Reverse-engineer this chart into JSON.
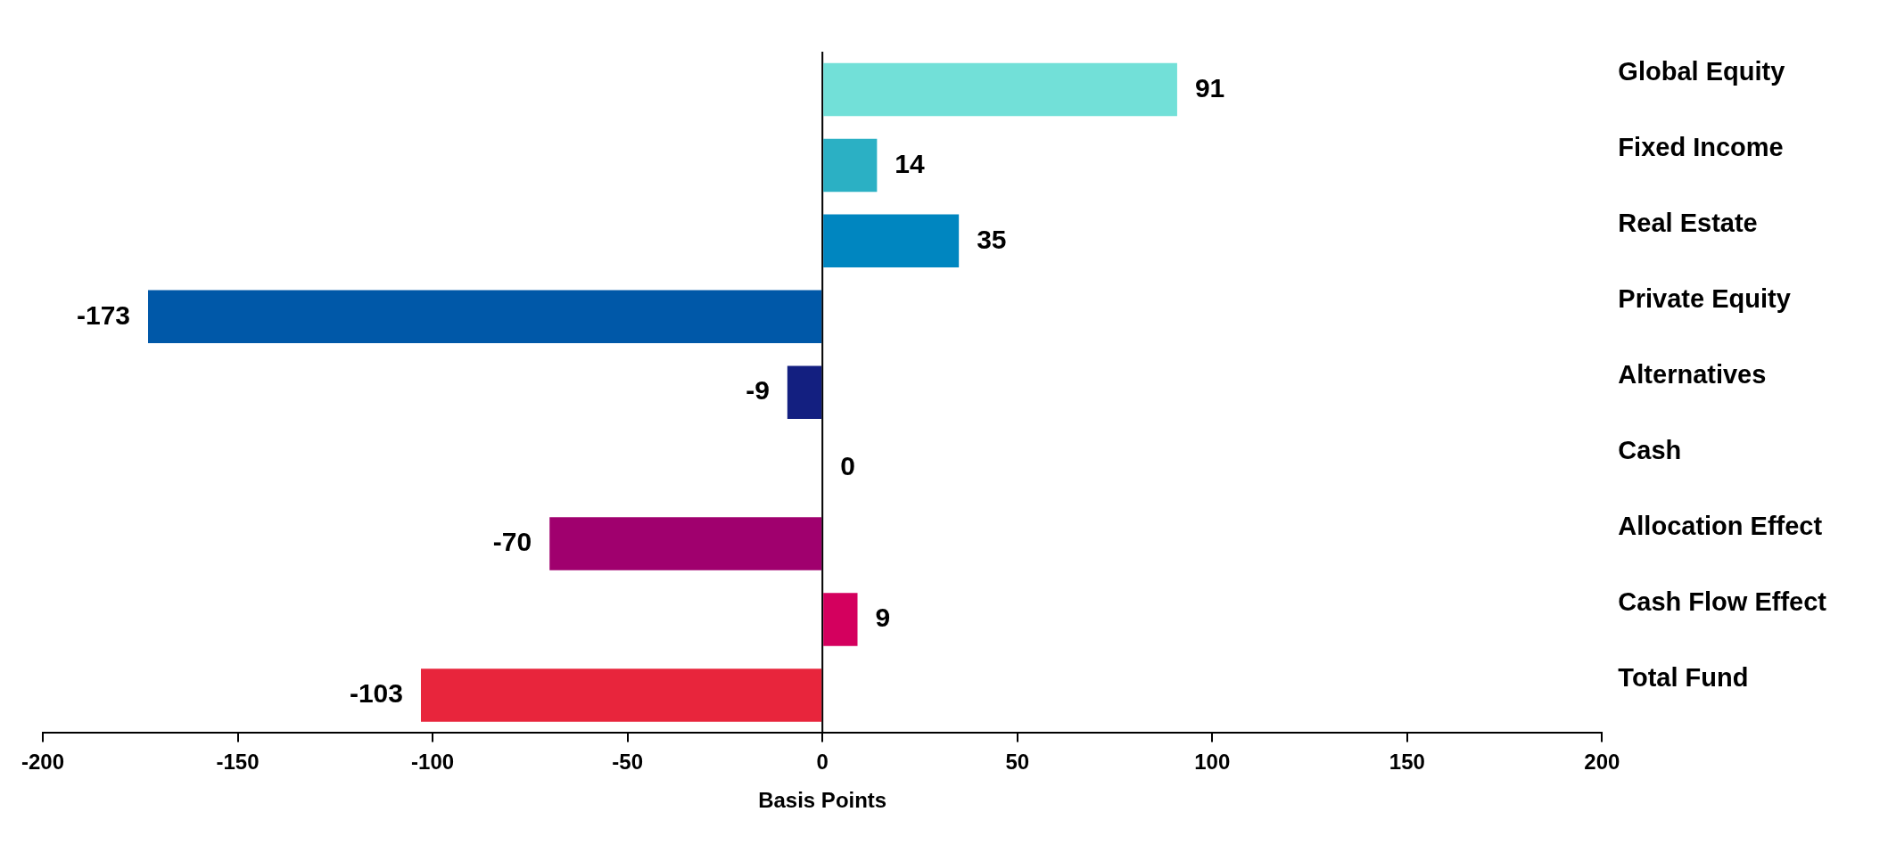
{
  "chart_data": {
    "type": "bar",
    "orientation": "horizontal",
    "xlabel": "Basis Points",
    "categories": [
      "Global Equity",
      "Fixed Income",
      "Real Estate",
      "Private Equity",
      "Alternatives",
      "Cash",
      "Allocation Effect",
      "Cash Flow Effect",
      "Total Fund"
    ],
    "values": [
      91,
      14,
      35,
      -173,
      -9,
      0,
      -70,
      9,
      -103
    ],
    "colors": [
      "#72e0d8",
      "#2bb0c4",
      "#0086c0",
      "#0058a8",
      "#131f80",
      "#6a1b7a",
      "#a0006e",
      "#d4005e",
      "#e8253c"
    ],
    "xlim": [
      -200,
      200
    ],
    "xticks": [
      -200,
      -150,
      -100,
      -50,
      0,
      50,
      100,
      150,
      200
    ],
    "ref_lines": [
      {
        "axis": "x",
        "value": 0,
        "color": "#000000"
      }
    ],
    "data_labels": true,
    "grid": false,
    "legend": false
  }
}
